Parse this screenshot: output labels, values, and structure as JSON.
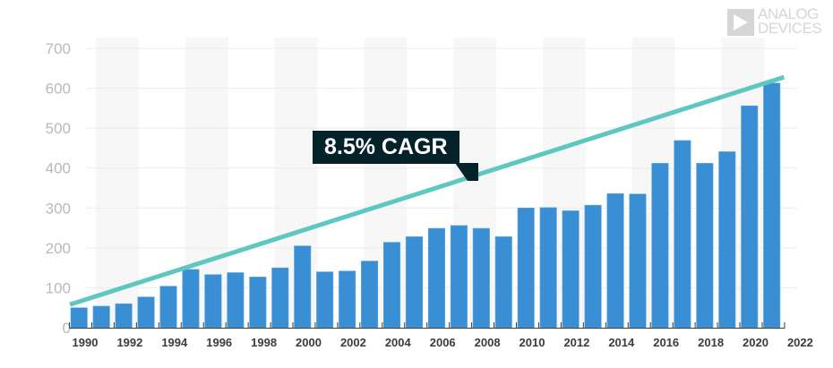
{
  "logo": {
    "line1": "ANALOG",
    "line2": "DEVICES"
  },
  "annotation": {
    "label": "8.5% CAGR"
  },
  "colors": {
    "bar": "#3a8fd4",
    "trend": "#5ec8c0",
    "callout_bg": "#04222a",
    "band": "#f7f7f7",
    "grid": "#ececec"
  },
  "chart_data": {
    "type": "bar",
    "title": "",
    "xlabel": "",
    "ylabel": "",
    "ylim": [
      0,
      700
    ],
    "yticks": [
      "0",
      "100",
      "200",
      "300",
      "400",
      "500",
      "600",
      "700"
    ],
    "xtick_labels": [
      "1990",
      "1992",
      "1994",
      "1996",
      "1998",
      "2000",
      "2002",
      "2004",
      "2006",
      "2008",
      "2010",
      "2012",
      "2014",
      "2016",
      "2018",
      "2020",
      "2022"
    ],
    "categories": [
      "1990",
      "1991",
      "1992",
      "1993",
      "1994",
      "1995",
      "1996",
      "1997",
      "1998",
      "1999",
      "2000",
      "2001",
      "2002",
      "2003",
      "2004",
      "2005",
      "2006",
      "2007",
      "2008",
      "2009",
      "2010",
      "2011",
      "2012",
      "2013",
      "2014",
      "2015",
      "2016",
      "2017",
      "2018",
      "2019",
      "2020",
      "2021"
    ],
    "values": [
      50,
      54,
      60,
      77,
      104,
      146,
      133,
      138,
      127,
      150,
      205,
      140,
      142,
      167,
      214,
      228,
      249,
      256,
      249,
      228,
      300,
      301,
      293,
      307,
      336,
      335,
      412,
      469,
      412,
      441,
      556,
      613
    ],
    "trend": {
      "name": "8.5% CAGR",
      "start_value": 58,
      "end_value": 628
    },
    "grid": true,
    "legend": "none"
  }
}
